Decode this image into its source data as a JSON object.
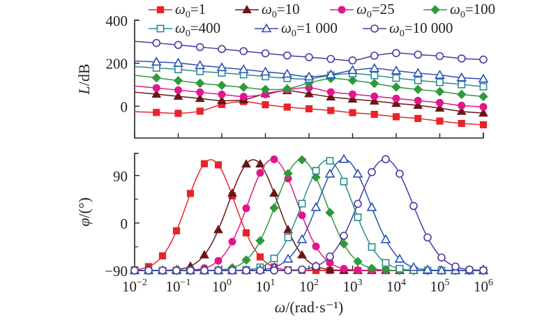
{
  "chart_data": [
    {
      "type": "line",
      "panel": "top",
      "title": "",
      "xlabel": "",
      "ylabel": "L/dB",
      "xscale": "log",
      "xlim": [
        0.01,
        1000000
      ],
      "ylim": [
        -148,
        400
      ],
      "yticks": [
        0,
        200,
        400
      ],
      "ytick_labels": [
        "0",
        "200",
        "400"
      ],
      "minor_yticks": [],
      "grid": false,
      "legend_position": "top",
      "x_log10": [
        -1.5,
        -1.0,
        -0.5,
        0.0,
        0.5,
        1.0,
        1.5,
        2.0,
        2.5,
        3.0,
        3.5,
        4.0,
        4.5,
        5.0,
        5.5,
        6.0
      ],
      "series": [
        {
          "name": "ω0=1",
          "legend_prefix": "ω",
          "legend_sub": "0",
          "legend_value": "=1",
          "color": "#e8242b",
          "marker": "square-filled",
          "values": [
            -29,
            -33,
            -23,
            8,
            22,
            7,
            -4,
            -12,
            -20,
            -30,
            -38,
            -49,
            -57,
            -69,
            -80,
            -86
          ]
        },
        {
          "name": "ω0=10",
          "legend_prefix": "ω",
          "legend_sub": "0",
          "legend_value": "=10",
          "color": "#6b1518",
          "marker": "triangle-filled",
          "values": [
            56,
            46,
            36,
            26,
            30,
            58,
            72,
            58,
            43,
            33,
            24,
            13,
            4,
            -9,
            -24,
            -32
          ]
        },
        {
          "name": "ω0=25",
          "legend_prefix": "ω",
          "legend_sub": "0",
          "legend_value": "=25",
          "color": "#e2168c",
          "marker": "circle-filled",
          "values": [
            85,
            75,
            65,
            55,
            45,
            55,
            76,
            86,
            66,
            56,
            46,
            36,
            26,
            16,
            3,
            -3
          ]
        },
        {
          "name": "ω0=100",
          "legend_prefix": "ω",
          "legend_sub": "0",
          "legend_value": "=100",
          "color": "#2f9a3a",
          "marker": "diamond-filled",
          "values": [
            132,
            119,
            107,
            97,
            88,
            78,
            81,
            108,
            129,
            120,
            106,
            89,
            78,
            68,
            55,
            45
          ]
        },
        {
          "name": "ω0=400",
          "legend_prefix": "ω",
          "legend_sub": "0",
          "legend_value": "=400",
          "color": "#2b8c8c",
          "marker": "square-open",
          "values": [
            178,
            171,
            162,
            155,
            147,
            138,
            130,
            127,
            144,
            152,
            143,
            131,
            120,
            111,
            101,
            91
          ]
        },
        {
          "name": "ω0=1 000",
          "legend_prefix": "ω",
          "legend_sub": "0",
          "legend_value": "=1 000",
          "color": "#2d4fb5",
          "marker": "triangle-open",
          "values": [
            206,
            201,
            190,
            180,
            171,
            160,
            150,
            137,
            147,
            167,
            176,
            165,
            154,
            145,
            133,
            127
          ]
        },
        {
          "name": "ω0=10 000",
          "legend_prefix": "ω",
          "legend_sub": "0",
          "legend_value": "=10 000",
          "color": "#4a3aa0",
          "marker": "circle-open",
          "values": [
            294,
            285,
            275,
            266,
            256,
            246,
            236,
            228,
            220,
            213,
            235,
            247,
            240,
            233,
            222,
            217
          ]
        }
      ]
    },
    {
      "type": "line",
      "panel": "bottom",
      "title": "",
      "xlabel": "ω/(rad·s⁻¹)",
      "ylabel": "φ/(°)",
      "xscale": "log",
      "xlim": [
        0.01,
        1000000
      ],
      "ylim": [
        -90,
        132
      ],
      "yticks": [
        -90,
        0,
        90
      ],
      "ytick_labels": [
        "−90",
        "0",
        "90"
      ],
      "minor_yticks": [
        -45,
        45
      ],
      "xticks_log10": [
        -2,
        -1,
        0,
        1,
        2,
        3,
        4,
        5,
        6
      ],
      "xtick_labels": [
        {
          "base": "10",
          "exp": "−2"
        },
        {
          "base": "10",
          "exp": "−1"
        },
        {
          "base": "10",
          "exp": "0"
        },
        {
          "base": "10",
          "exp": "1"
        },
        {
          "base": "10",
          "exp": "2"
        },
        {
          "base": "10",
          "exp": "3"
        },
        {
          "base": "10",
          "exp": "4"
        },
        {
          "base": "10",
          "exp": "5"
        },
        {
          "base": "10",
          "exp": "6"
        }
      ],
      "grid": false,
      "x_log10": [
        -2.0,
        -1.68,
        -1.36,
        -1.04,
        -0.72,
        -0.4,
        -0.08,
        0.24,
        0.56,
        0.88,
        1.2,
        1.52,
        1.84,
        2.16,
        2.48,
        2.8,
        3.12,
        3.44,
        3.76,
        4.08,
        4.4,
        4.72,
        5.04,
        5.36,
        5.68,
        6.0
      ],
      "series": [
        {
          "name": "ω0=1",
          "color": "#e8242b",
          "marker": "square-filled",
          "peak_log10": -0.25,
          "peak_value": 120,
          "width_decades": 0.78
        },
        {
          "name": "ω0=10",
          "color": "#6b1518",
          "marker": "triangle-filled",
          "peak_log10": 0.72,
          "peak_value": 120,
          "width_decades": 0.8
        },
        {
          "name": "ω0=25",
          "color": "#e2168c",
          "marker": "circle-filled",
          "peak_log10": 1.17,
          "peak_value": 121,
          "width_decades": 0.8
        },
        {
          "name": "ω0=100",
          "color": "#2f9a3a",
          "marker": "diamond-filled",
          "peak_log10": 1.82,
          "peak_value": 120,
          "width_decades": 0.82
        },
        {
          "name": "ω0=400",
          "color": "#2b8c8c",
          "marker": "square-open",
          "peak_log10": 2.42,
          "peak_value": 119,
          "width_decades": 0.82
        },
        {
          "name": "ω0=1 000",
          "color": "#2d4fb5",
          "marker": "triangle-open",
          "peak_log10": 2.8,
          "peak_value": 121,
          "width_decades": 0.85
        },
        {
          "name": "ω0=10 000",
          "color": "#4a3aa0",
          "marker": "circle-open",
          "peak_log10": 3.75,
          "peak_value": 121,
          "width_decades": 0.88
        }
      ],
      "baseline": -90
    }
  ]
}
